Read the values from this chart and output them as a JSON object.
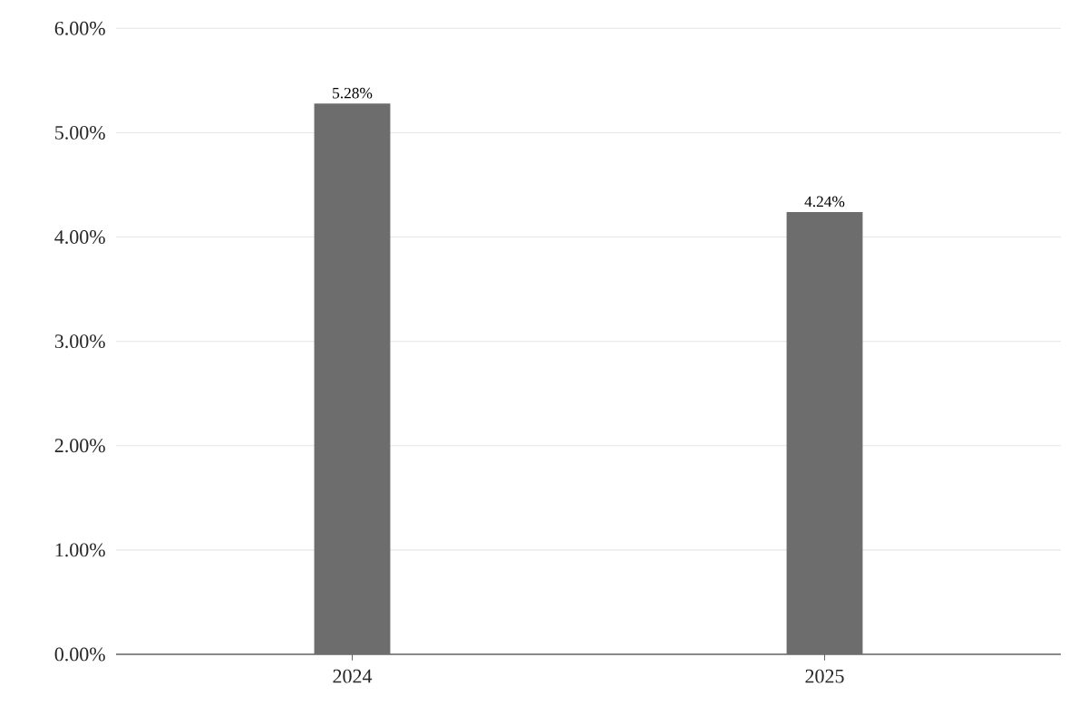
{
  "chart_data": {
    "type": "bar",
    "categories": [
      "2024",
      "2025"
    ],
    "values": [
      5.28,
      4.24
    ],
    "value_labels": [
      "5.28%",
      "4.24%"
    ],
    "color": "#6d6d6d",
    "ylim": [
      0,
      6
    ],
    "yticks": [
      {
        "value": 0,
        "label": "0.00%"
      },
      {
        "value": 1,
        "label": "1.00%"
      },
      {
        "value": 2,
        "label": "2.00%"
      },
      {
        "value": 3,
        "label": "3.00%"
      },
      {
        "value": 4,
        "label": "4.00%"
      },
      {
        "value": 5,
        "label": "5.00%"
      },
      {
        "value": 6,
        "label": "6.00%"
      }
    ],
    "grid": "y"
  }
}
